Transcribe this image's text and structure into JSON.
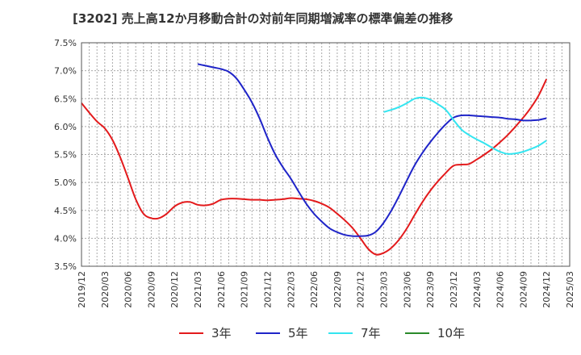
{
  "title": "[3202]  売上高12か月移動合計の対前年同期増減率の標準偏差の推移",
  "colors": {
    "s3": "#e31a1c",
    "s5": "#1f24c8",
    "s7": "#33e5f0",
    "s10": "#2a8a2a",
    "grid": "#aaaaaa",
    "plot_border": "#555555"
  },
  "chart_data": {
    "type": "line",
    "xlabel": "",
    "ylabel": "",
    "x_tick_labels": [
      "2019/12",
      "2020/03",
      "2020/06",
      "2020/09",
      "2020/12",
      "2021/03",
      "2021/06",
      "2021/09",
      "2021/12",
      "2022/03",
      "2022/06",
      "2022/09",
      "2022/12",
      "2023/03",
      "2023/06",
      "2023/09",
      "2023/12",
      "2024/03",
      "2024/06",
      "2024/09",
      "2024/12",
      "2025/03"
    ],
    "y_tick_labels": [
      "3.5%",
      "4.0%",
      "4.5%",
      "5.0%",
      "5.5%",
      "6.0%",
      "6.5%",
      "7.0%",
      "7.5%"
    ],
    "ylim": [
      3.5,
      7.5
    ],
    "xlim": [
      "2019/12",
      "2025/03"
    ],
    "grid": true,
    "legend_position": "bottom",
    "series": [
      {
        "name": "3年",
        "color": "#e31a1c",
        "x": [
          "2019/12",
          "2020/01",
          "2020/02",
          "2020/03",
          "2020/04",
          "2020/05",
          "2020/06",
          "2020/07",
          "2020/08",
          "2020/09",
          "2020/10",
          "2020/11",
          "2020/12",
          "2021/01",
          "2021/02",
          "2021/03",
          "2021/04",
          "2021/05",
          "2021/06",
          "2021/07",
          "2021/08",
          "2021/09",
          "2021/10",
          "2021/11",
          "2021/12",
          "2022/01",
          "2022/02",
          "2022/03",
          "2022/04",
          "2022/05",
          "2022/06",
          "2022/07",
          "2022/08",
          "2022/09",
          "2022/10",
          "2022/11",
          "2022/12",
          "2023/01",
          "2023/02",
          "2023/03",
          "2023/04",
          "2023/05",
          "2023/06",
          "2023/07",
          "2023/08",
          "2023/09",
          "2023/10",
          "2023/11",
          "2023/12",
          "2024/01",
          "2024/02",
          "2024/03",
          "2024/04",
          "2024/05",
          "2024/06",
          "2024/07",
          "2024/08",
          "2024/09",
          "2024/10",
          "2024/11",
          "2024/12"
        ],
        "values": [
          6.42,
          6.25,
          6.09,
          5.97,
          5.76,
          5.45,
          5.08,
          4.7,
          4.44,
          4.36,
          4.36,
          4.44,
          4.57,
          4.64,
          4.65,
          4.6,
          4.59,
          4.62,
          4.69,
          4.71,
          4.71,
          4.7,
          4.69,
          4.69,
          4.68,
          4.69,
          4.7,
          4.72,
          4.71,
          4.7,
          4.67,
          4.62,
          4.55,
          4.44,
          4.32,
          4.18,
          4.0,
          3.81,
          3.71,
          3.74,
          3.83,
          3.98,
          4.18,
          4.42,
          4.65,
          4.85,
          5.02,
          5.17,
          5.3,
          5.32,
          5.33,
          5.41,
          5.5,
          5.6,
          5.72,
          5.85,
          6.0,
          6.16,
          6.34,
          6.56,
          6.85
        ]
      },
      {
        "name": "5年",
        "color": "#1f24c8",
        "x": [
          "2021/03",
          "2021/04",
          "2021/05",
          "2021/06",
          "2021/07",
          "2021/08",
          "2021/09",
          "2021/10",
          "2021/11",
          "2021/12",
          "2022/01",
          "2022/02",
          "2022/03",
          "2022/04",
          "2022/05",
          "2022/06",
          "2022/07",
          "2022/08",
          "2022/09",
          "2022/10",
          "2022/11",
          "2022/12",
          "2023/01",
          "2023/02",
          "2023/03",
          "2023/04",
          "2023/05",
          "2023/06",
          "2023/07",
          "2023/08",
          "2023/09",
          "2023/10",
          "2023/11",
          "2023/12",
          "2024/01",
          "2024/02",
          "2024/03",
          "2024/04",
          "2024/05",
          "2024/06",
          "2024/07",
          "2024/08",
          "2024/09",
          "2024/10",
          "2024/11",
          "2024/12"
        ],
        "values": [
          7.12,
          7.09,
          7.06,
          7.03,
          6.98,
          6.86,
          6.66,
          6.43,
          6.14,
          5.8,
          5.5,
          5.27,
          5.07,
          4.84,
          4.62,
          4.44,
          4.3,
          4.18,
          4.11,
          4.06,
          4.04,
          4.04,
          4.05,
          4.12,
          4.28,
          4.5,
          4.76,
          5.04,
          5.31,
          5.53,
          5.72,
          5.89,
          6.04,
          6.16,
          6.2,
          6.2,
          6.19,
          6.18,
          6.17,
          6.16,
          6.14,
          6.13,
          6.11,
          6.11,
          6.12,
          6.15
        ]
      },
      {
        "name": "7年",
        "color": "#33e5f0",
        "x": [
          "2023/03",
          "2023/04",
          "2023/05",
          "2023/06",
          "2023/07",
          "2023/08",
          "2023/09",
          "2023/10",
          "2023/11",
          "2023/12",
          "2024/01",
          "2024/02",
          "2024/03",
          "2024/04",
          "2024/05",
          "2024/06",
          "2024/07",
          "2024/08",
          "2024/09",
          "2024/10",
          "2024/11",
          "2024/12"
        ],
        "values": [
          6.26,
          6.3,
          6.35,
          6.42,
          6.5,
          6.52,
          6.48,
          6.4,
          6.3,
          6.12,
          5.95,
          5.85,
          5.77,
          5.7,
          5.62,
          5.55,
          5.51,
          5.52,
          5.55,
          5.6,
          5.66,
          5.75
        ]
      },
      {
        "name": "10年",
        "color": "#2a8a2a",
        "x": [],
        "values": []
      }
    ]
  }
}
